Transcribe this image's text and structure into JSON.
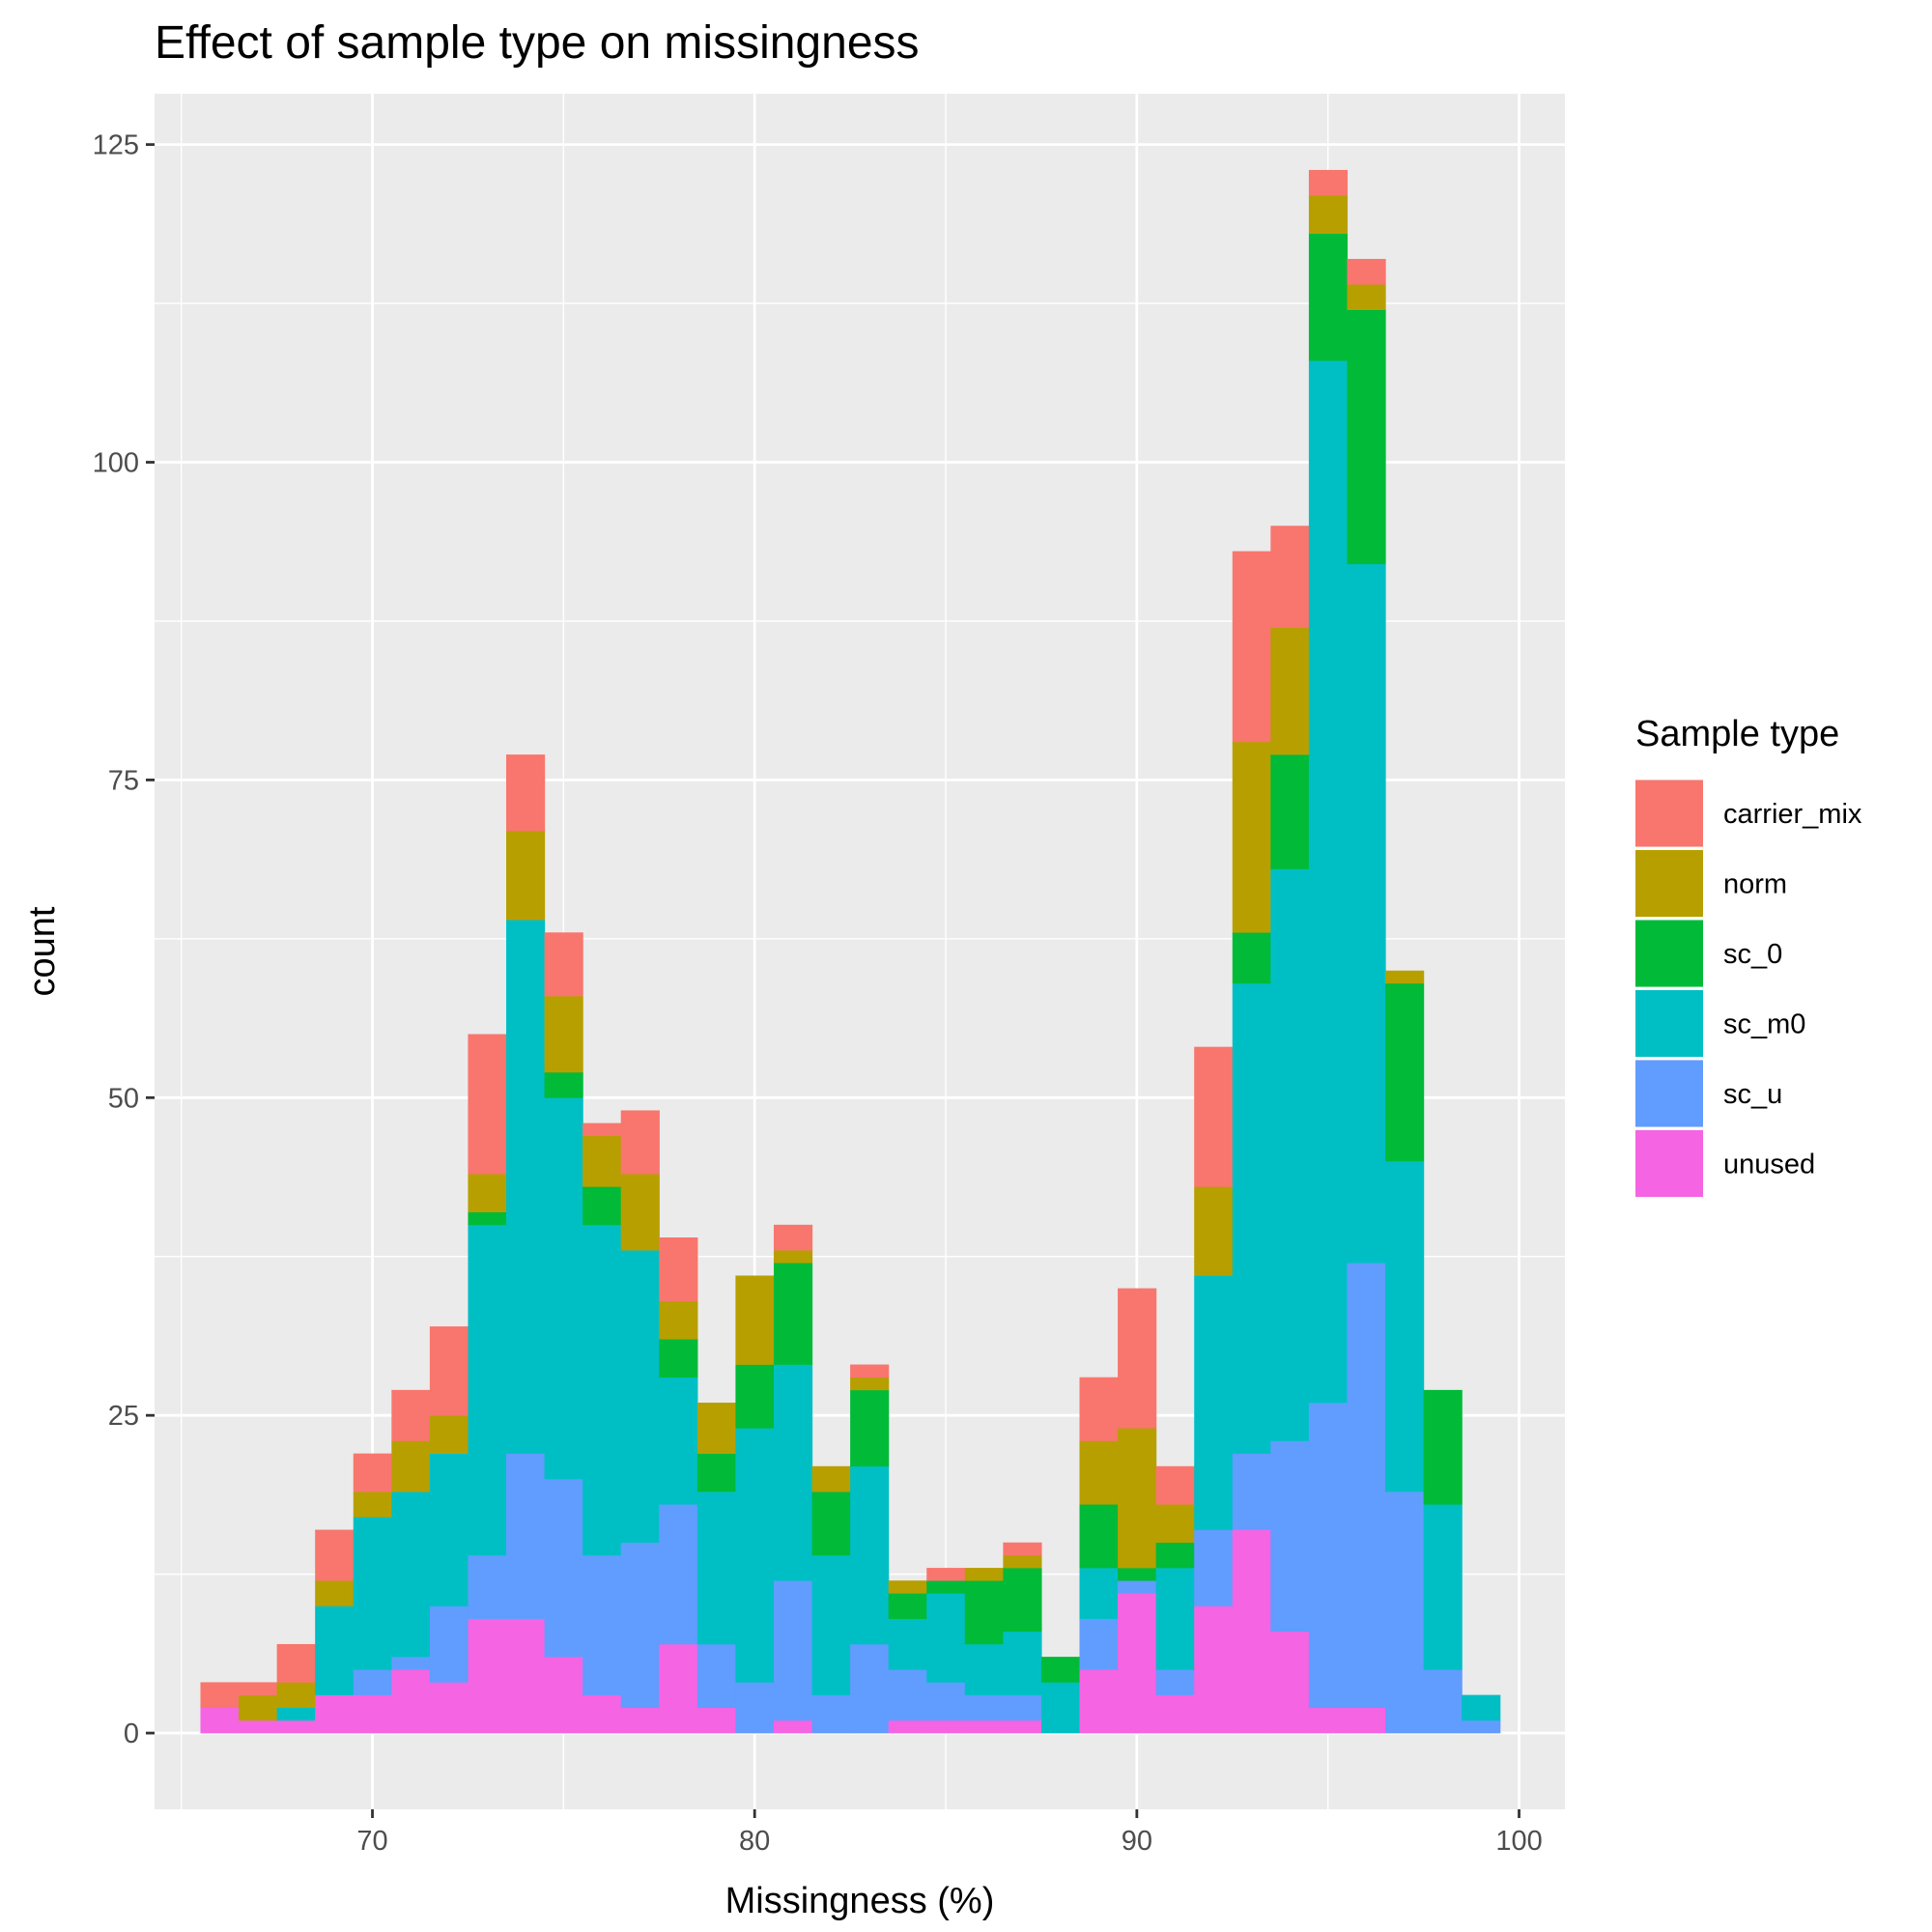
{
  "chart_data": {
    "type": "bar",
    "stacked": true,
    "title": "Effect of sample type on missingness",
    "xlabel": "Missingness (%)",
    "ylabel": "count",
    "xlim": [
      64.3,
      101.2
    ],
    "ylim": [
      -6,
      129
    ],
    "x_ticks": [
      70,
      80,
      90,
      100
    ],
    "y_ticks": [
      0,
      25,
      50,
      75,
      100,
      125
    ],
    "bin_width": 1,
    "bin_centers": [
      66,
      67,
      68,
      69,
      70,
      71,
      72,
      73,
      74,
      75,
      76,
      77,
      78,
      79,
      80,
      81,
      82,
      83,
      84,
      85,
      86,
      87,
      88,
      89,
      90,
      91,
      92,
      93,
      94,
      95,
      96,
      97,
      98,
      99
    ],
    "legend": {
      "title": "Sample type",
      "position": "right"
    },
    "grid": true,
    "background": "#ebebeb",
    "series": [
      {
        "name": "unused",
        "color": "#F564E3",
        "values": [
          2,
          1,
          1,
          3,
          3,
          5,
          4,
          9,
          9,
          6,
          3,
          2,
          7,
          2,
          0,
          1,
          0,
          0,
          1,
          1,
          1,
          1,
          0,
          5,
          11,
          3,
          10,
          16,
          8,
          2,
          2,
          0,
          0,
          0
        ]
      },
      {
        "name": "sc_u",
        "color": "#619CFF",
        "values": [
          0,
          0,
          0,
          0,
          2,
          1,
          6,
          5,
          13,
          14,
          11,
          13,
          11,
          5,
          4,
          11,
          3,
          7,
          4,
          3,
          2,
          2,
          0,
          4,
          1,
          2,
          6,
          6,
          15,
          24,
          35,
          19,
          5,
          1
        ]
      },
      {
        "name": "sc_m0",
        "color": "#00BFC4",
        "values": [
          0,
          0,
          1,
          7,
          12,
          13,
          12,
          26,
          42,
          30,
          26,
          23,
          10,
          12,
          20,
          17,
          11,
          14,
          4,
          7,
          4,
          5,
          4,
          4,
          0,
          8,
          20,
          37,
          45,
          82,
          55,
          26,
          13,
          2
        ]
      },
      {
        "name": "sc_0",
        "color": "#00BA38",
        "values": [
          0,
          0,
          0,
          0,
          0,
          0,
          0,
          1,
          0,
          2,
          3,
          0,
          3,
          3,
          5,
          8,
          5,
          6,
          2,
          1,
          5,
          5,
          2,
          5,
          1,
          2,
          0,
          4,
          9,
          10,
          20,
          14,
          9,
          0
        ]
      },
      {
        "name": "norm",
        "color": "#B79F00",
        "values": [
          0,
          2,
          2,
          2,
          2,
          4,
          3,
          3,
          7,
          6,
          4,
          6,
          3,
          4,
          7,
          1,
          2,
          1,
          1,
          0,
          1,
          1,
          0,
          5,
          11,
          3,
          7,
          15,
          10,
          3,
          2,
          1,
          0,
          0
        ]
      },
      {
        "name": "carrier_mix",
        "color": "#F8766D",
        "values": [
          2,
          1,
          3,
          4,
          3,
          4,
          7,
          11,
          6,
          5,
          1,
          5,
          5,
          0,
          0,
          2,
          0,
          1,
          0,
          1,
          0,
          1,
          0,
          5,
          11,
          3,
          11,
          15,
          8,
          2,
          2,
          0,
          0,
          0
        ]
      }
    ]
  }
}
